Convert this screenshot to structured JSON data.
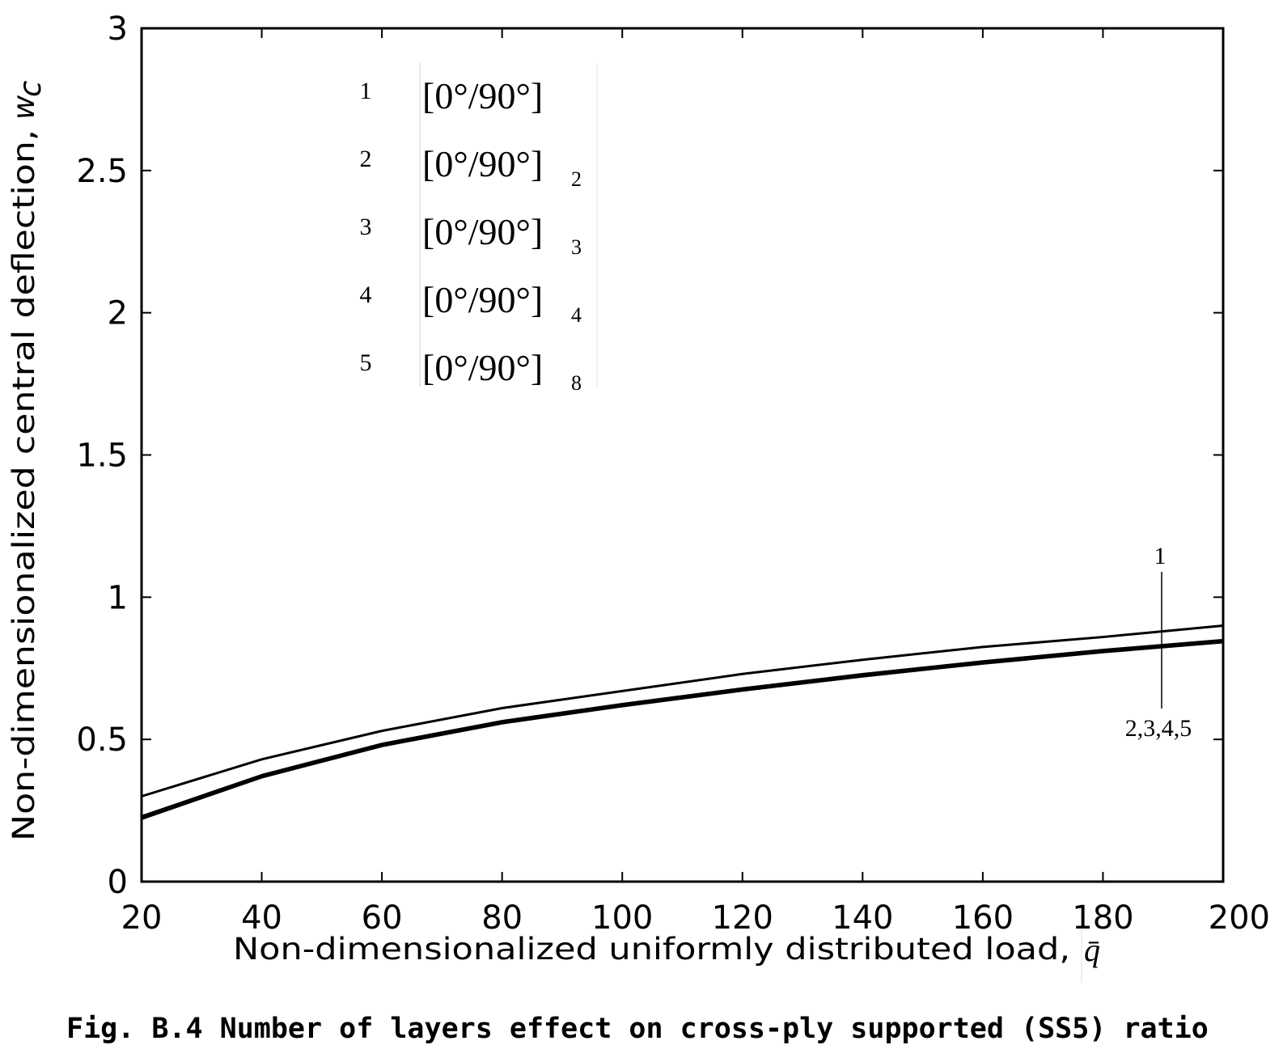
{
  "chart_data": {
    "type": "line",
    "xlabel": "Non-dimensionalized uniformly distributed load,",
    "xlabel_symbol": "q̄",
    "ylabel": "Non-dimensionalized central deflection,",
    "ylabel_symbol": "w",
    "ylabel_subscript": "c",
    "xlim": [
      20,
      200
    ],
    "ylim": [
      0,
      3
    ],
    "xticks": [
      "20",
      "40",
      "60",
      "80",
      "100",
      "120",
      "140",
      "160",
      "180",
      "200"
    ],
    "yticks": [
      "0",
      "0.5",
      "1",
      "1.5",
      "2",
      "2.5",
      "3"
    ],
    "grid": false,
    "legend_placement": "top-left",
    "x": [
      20,
      40,
      60,
      80,
      100,
      120,
      140,
      160,
      180,
      200
    ],
    "series": [
      {
        "name": "1",
        "legend_label": "[0°/90°]",
        "values": [
          0.3,
          0.43,
          0.53,
          0.61,
          0.67,
          0.73,
          0.78,
          0.825,
          0.86,
          0.9
        ],
        "color": "#000000"
      },
      {
        "name": "2",
        "legend_label": "[0°/90°]",
        "legend_sub": "2",
        "values": [
          0.23,
          0.375,
          0.485,
          0.565,
          0.625,
          0.68,
          0.73,
          0.775,
          0.815,
          0.85
        ],
        "color": "#000000"
      },
      {
        "name": "3",
        "legend_label": "[0°/90°]",
        "legend_sub": "3",
        "values": [
          0.225,
          0.37,
          0.48,
          0.56,
          0.62,
          0.675,
          0.725,
          0.77,
          0.81,
          0.845
        ],
        "color": "#000000"
      },
      {
        "name": "4",
        "legend_label": "[0°/90°]",
        "legend_sub": "4",
        "values": [
          0.222,
          0.368,
          0.478,
          0.558,
          0.618,
          0.673,
          0.723,
          0.768,
          0.808,
          0.843
        ],
        "color": "#000000"
      },
      {
        "name": "5",
        "legend_label": "[0°/90°]",
        "legend_sub": "8",
        "values": [
          0.22,
          0.366,
          0.476,
          0.556,
          0.616,
          0.671,
          0.721,
          0.766,
          0.806,
          0.841
        ],
        "color": "#000000"
      }
    ],
    "annotations": [
      {
        "text": "1",
        "x": 190
      },
      {
        "text": "2,3,4,5",
        "x": 190
      }
    ]
  },
  "caption": "Fig. B.4 Number of layers effect on cross-ply supported (SS5) ratio"
}
